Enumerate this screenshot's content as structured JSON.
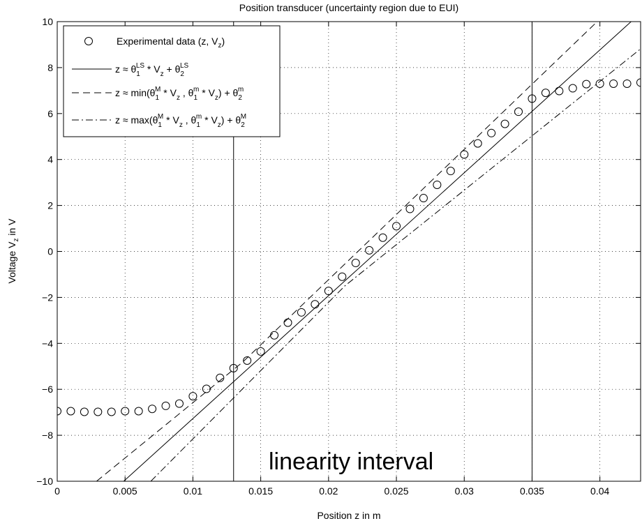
{
  "chart_data": {
    "type": "scatter",
    "title": "Position transducer (uncertainty region due to EUI)",
    "xlabel": "Position z in m",
    "ylabel": "Voltage V_z in V",
    "ylabel_main": "Voltage V",
    "ylabel_sub": "z",
    "ylabel_tail": " in V",
    "xlim": [
      0,
      0.043
    ],
    "ylim": [
      -10,
      10
    ],
    "xticks": [
      0,
      0.005,
      0.01,
      0.015,
      0.02,
      0.025,
      0.03,
      0.035,
      0.04
    ],
    "yticks": [
      -10,
      -8,
      -6,
      -4,
      -2,
      0,
      2,
      4,
      6,
      8,
      10
    ],
    "xtick_labels": [
      "0",
      "0.005",
      "0.01",
      "0.015",
      "0.02",
      "0.025",
      "0.03",
      "0.035",
      "0.04"
    ],
    "ytick_labels": [
      "−10",
      "−8",
      "−6",
      "−4",
      "−2",
      "0",
      "2",
      "4",
      "6",
      "8",
      "10"
    ],
    "grid": true,
    "legend_position": "top-left",
    "annotation": "linearity interval",
    "vertical_lines": [
      0.013,
      0.035
    ],
    "series": [
      {
        "name": "Experimental data (z, V_z)",
        "style": "circle-markers",
        "x": [
          0,
          0.001,
          0.002,
          0.003,
          0.004,
          0.005,
          0.006,
          0.007,
          0.008,
          0.009,
          0.01,
          0.011,
          0.012,
          0.013,
          0.014,
          0.015,
          0.016,
          0.017,
          0.018,
          0.019,
          0.02,
          0.021,
          0.022,
          0.023,
          0.024,
          0.025,
          0.026,
          0.027,
          0.028,
          0.029,
          0.03,
          0.031,
          0.032,
          0.033,
          0.034,
          0.035,
          0.036,
          0.037,
          0.038,
          0.039,
          0.04,
          0.041,
          0.042,
          0.043
        ],
        "y": [
          -6.95,
          -6.95,
          -6.98,
          -6.98,
          -6.98,
          -6.95,
          -6.95,
          -6.85,
          -6.72,
          -6.62,
          -6.3,
          -5.98,
          -5.5,
          -5.08,
          -4.75,
          -4.35,
          -3.65,
          -3.1,
          -2.65,
          -2.3,
          -1.72,
          -1.1,
          -0.5,
          0.05,
          0.6,
          1.1,
          1.85,
          2.32,
          2.9,
          3.5,
          4.22,
          4.7,
          5.15,
          5.55,
          6.08,
          6.65,
          6.9,
          6.98,
          7.1,
          7.28,
          7.3,
          7.3,
          7.3,
          7.35
        ]
      },
      {
        "name": "z ≈ θ1LS * Vz + θ2LS",
        "style": "solid",
        "x": [
          0.0049,
          0.0423
        ],
        "y": [
          -10,
          10
        ]
      },
      {
        "name": "z ≈ min(θ1M * Vz , θ1m * Vz) + θ2m",
        "style": "dashed",
        "x": [
          0.0029,
          0.0137,
          0.0398
        ],
        "y": [
          -10,
          -4.8,
          10
        ]
      },
      {
        "name": "z ≈ max(θ1M * Vz , θ1m * Vz) + θ2M",
        "style": "dash-dot",
        "x": [
          0.0069,
          0.0212,
          0.0455
        ],
        "y": [
          -10,
          -1.5,
          10
        ]
      }
    ]
  },
  "legend": {
    "entries": [
      {
        "main": "Experimental data (z, V",
        "sub": "z",
        "tail": ")"
      },
      {
        "pre": "z ≈ θ",
        "sub1": "1",
        "sup1": "LS",
        "mid1": " * V",
        "sub2": "z",
        "mid2": " + θ",
        "sub3": "2",
        "sup3": "LS"
      },
      {
        "pre": "z ≈ min(θ",
        "sub1": "1",
        "sup1": "M",
        "mid1": " * V",
        "sub2": "z",
        "mid2": " , θ",
        "sub3": "1",
        "sup3": "m",
        "mid3": " * V",
        "sub4": "z",
        "mid4": ") + θ",
        "sub5": "2",
        "sup5": "m"
      },
      {
        "pre": "z ≈ max(θ",
        "sub1": "1",
        "sup1": "M",
        "mid1": " * V",
        "sub2": "z",
        "mid2": " , θ",
        "sub3": "1",
        "sup3": "m",
        "mid3": " * V",
        "sub4": "z",
        "mid4": ") + θ",
        "sub5": "2",
        "sup5": "M"
      }
    ]
  },
  "colors": {
    "line": "#000000",
    "grid": "#000000",
    "background": "#ffffff"
  }
}
